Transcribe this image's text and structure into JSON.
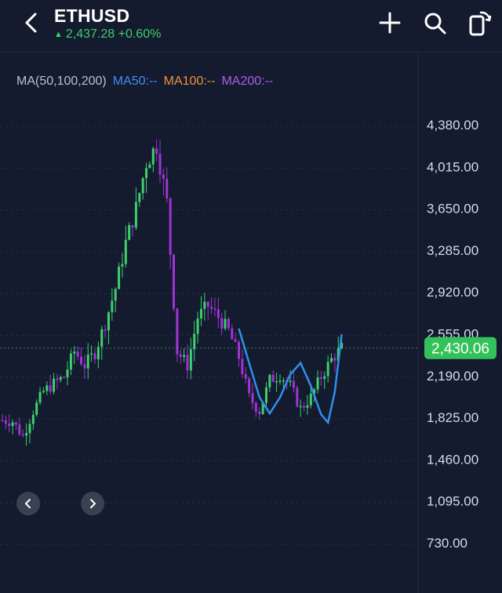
{
  "header": {
    "title": "ETHUSD",
    "price_change": "2,437.28 +0.60%",
    "colors": {
      "background": "#141b2e",
      "up": "#3ecf6e",
      "down": "#a033d6"
    }
  },
  "indicators": {
    "label": "MA(50,100,200)",
    "ma50": "MA50:--",
    "ma100": "MA100:--",
    "ma200": "MA200:--"
  },
  "chart_data": {
    "type": "candlestick",
    "title": "",
    "xlabel": "",
    "ylabel": "",
    "y_ticks": [
      "4,380.00",
      "4,015.00",
      "3,650.00",
      "3,285.00",
      "2,920.00",
      "2,555.00",
      "2,190.00",
      "1,825.00",
      "1,460.00",
      "1,095.00",
      "730.00"
    ],
    "ylim": [
      730,
      4380
    ],
    "current_price_label": "2,430.06",
    "current_price": 2430.06,
    "price_path": [
      [
        0,
        1800
      ],
      [
        3,
        1790
      ],
      [
        6,
        1660
      ],
      [
        9,
        1880
      ],
      [
        12,
        2050
      ],
      [
        15,
        2120
      ],
      [
        18,
        2180
      ],
      [
        21,
        2400
      ],
      [
        24,
        2280
      ],
      [
        27,
        2390
      ],
      [
        30,
        2650
      ],
      [
        33,
        2950
      ],
      [
        36,
        3350
      ],
      [
        39,
        3650
      ],
      [
        42,
        4050
      ],
      [
        45,
        4200
      ],
      [
        48,
        3700
      ],
      [
        51,
        2400
      ],
      [
        54,
        2280
      ],
      [
        57,
        2700
      ],
      [
        60,
        2800
      ],
      [
        63,
        2700
      ],
      [
        66,
        2580
      ],
      [
        69,
        2350
      ],
      [
        72,
        2000
      ],
      [
        75,
        1880
      ],
      [
        78,
        2150
      ],
      [
        81,
        2200
      ],
      [
        84,
        2100
      ],
      [
        87,
        1900
      ],
      [
        90,
        2000
      ],
      [
        93,
        2180
      ],
      [
        96,
        2330
      ],
      [
        99,
        2430
      ]
    ],
    "ma_line": [
      [
        69,
        2600
      ],
      [
        72,
        2300
      ],
      [
        75,
        2000
      ],
      [
        78,
        1860
      ],
      [
        81,
        2000
      ],
      [
        84,
        2200
      ],
      [
        87,
        2300
      ],
      [
        90,
        2100
      ],
      [
        93,
        1850
      ],
      [
        95,
        1780
      ],
      [
        97,
        2050
      ],
      [
        99,
        2550
      ]
    ],
    "nav": {
      "left": "chevron-left-icon",
      "right": "chevron-right-icon"
    }
  }
}
